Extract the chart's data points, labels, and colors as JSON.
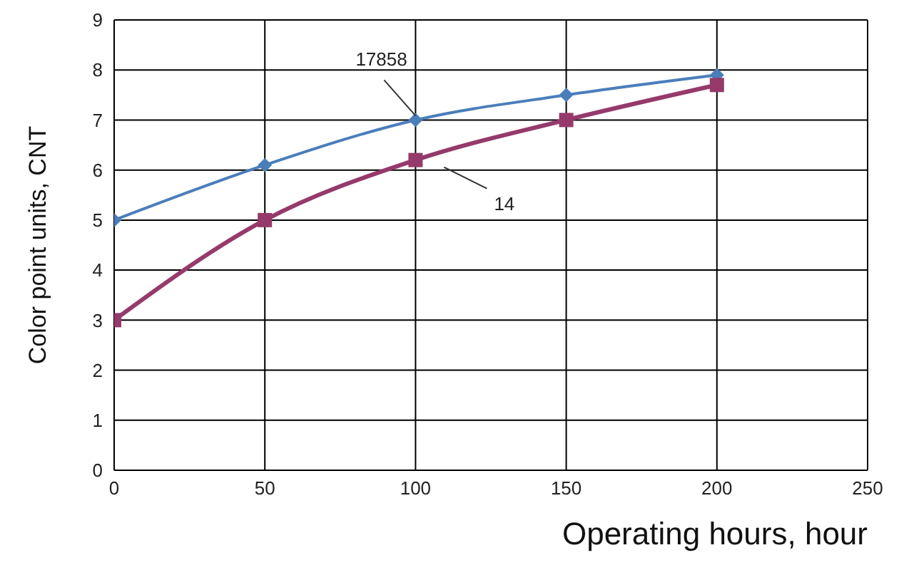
{
  "chart_data": {
    "type": "line",
    "xlabel": "Operating hours, hour",
    "ylabel": "Color point units, CNT",
    "x": [
      0,
      50,
      100,
      150,
      200
    ],
    "series": [
      {
        "name": "17858",
        "color": "#4a7ebb",
        "marker": "diamond",
        "values": [
          5,
          6.1,
          7,
          7.5,
          7.9
        ]
      },
      {
        "name": "14",
        "color": "#953a6a",
        "marker": "square",
        "values": [
          3,
          5,
          6.2,
          7,
          7.7
        ]
      }
    ],
    "xlim": [
      0,
      250
    ],
    "xticks": [
      0,
      50,
      100,
      150,
      200,
      250
    ],
    "ylim": [
      0,
      9
    ],
    "yticks": [
      0,
      1,
      2,
      3,
      4,
      5,
      6,
      7,
      8,
      9
    ],
    "grid": true,
    "legend": false
  }
}
